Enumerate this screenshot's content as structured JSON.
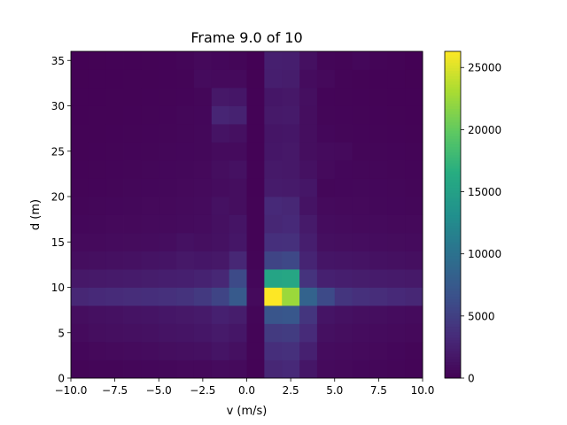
{
  "chart_data": {
    "type": "heatmap",
    "title": "Frame 9.0 of 10",
    "xlabel": "v (m/s)",
    "ylabel": "d (m)",
    "xlim": [
      -10,
      10
    ],
    "ylim": [
      0,
      36
    ],
    "x_bin_width": 1.0,
    "y_bin_width": 2.0,
    "x_ticks": [
      -10,
      -7.5,
      -5,
      -2.5,
      0,
      2.5,
      5,
      7.5,
      10
    ],
    "x_tick_labels": [
      "−10.0",
      "−7.5",
      "−5.0",
      "−2.5",
      "0.0",
      "2.5",
      "5.0",
      "7.5",
      "10.0"
    ],
    "y_ticks": [
      0,
      5,
      10,
      15,
      20,
      25,
      30,
      35
    ],
    "y_tick_labels": [
      "0",
      "5",
      "10",
      "15",
      "20",
      "25",
      "30",
      "35"
    ],
    "colorbar": {
      "colormap": "viridis",
      "range": [
        0,
        26300
      ],
      "ticks": [
        0,
        5000,
        10000,
        15000,
        20000,
        25000
      ],
      "tick_labels": [
        "0",
        "5000",
        "10000",
        "15000",
        "20000",
        "25000"
      ]
    },
    "z_rows_bottom_to_top": [
      [
        300,
        400,
        400,
        450,
        500,
        550,
        600,
        650,
        800,
        700,
        200,
        3000,
        3200,
        1700,
        700,
        600,
        500,
        450,
        400,
        300
      ],
      [
        500,
        600,
        700,
        800,
        900,
        1000,
        1100,
        1200,
        1500,
        1200,
        300,
        3600,
        3800,
        2500,
        900,
        800,
        700,
        600,
        500,
        400
      ],
      [
        800,
        1000,
        1100,
        1200,
        1300,
        1400,
        1500,
        1700,
        2000,
        1700,
        300,
        4600,
        4800,
        3300,
        1200,
        1000,
        900,
        800,
        700,
        600
      ],
      [
        1000,
        1200,
        1300,
        1400,
        1500,
        1700,
        1800,
        2000,
        2500,
        2200,
        400,
        7000,
        7200,
        4200,
        1500,
        1300,
        1100,
        1000,
        900,
        800
      ],
      [
        3000,
        3200,
        3300,
        3500,
        3600,
        3800,
        4000,
        4500,
        5500,
        7500,
        700,
        26300,
        22500,
        8500,
        6000,
        4200,
        3800,
        3500,
        3200,
        3000
      ],
      [
        1800,
        1900,
        2000,
        2100,
        2200,
        2300,
        2400,
        2600,
        3000,
        6000,
        500,
        15500,
        15800,
        4000,
        2500,
        2300,
        2200,
        2100,
        2000,
        1900
      ],
      [
        1000,
        1100,
        1200,
        1300,
        1400,
        1500,
        1800,
        1700,
        1800,
        3000,
        300,
        5500,
        5800,
        2800,
        1600,
        1500,
        1400,
        1300,
        1200,
        1100
      ],
      [
        700,
        750,
        800,
        850,
        900,
        950,
        1300,
        1100,
        1300,
        1700,
        200,
        3700,
        3800,
        2300,
        1100,
        1000,
        950,
        900,
        850,
        800
      ],
      [
        500,
        550,
        600,
        650,
        700,
        750,
        800,
        900,
        1200,
        1500,
        200,
        3000,
        3200,
        2000,
        900,
        800,
        750,
        700,
        650,
        600
      ],
      [
        400,
        450,
        500,
        550,
        600,
        650,
        700,
        800,
        1300,
        1000,
        200,
        3200,
        3000,
        1400,
        700,
        650,
        600,
        550,
        500,
        450
      ],
      [
        300,
        350,
        400,
        450,
        500,
        550,
        600,
        700,
        900,
        1000,
        150,
        2100,
        2000,
        1700,
        450,
        500,
        550,
        500,
        450,
        400
      ],
      [
        250,
        300,
        350,
        400,
        450,
        500,
        550,
        650,
        1000,
        1300,
        150,
        1900,
        1800,
        1300,
        750,
        500,
        450,
        450,
        400,
        350
      ],
      [
        200,
        250,
        300,
        350,
        400,
        450,
        500,
        550,
        800,
        800,
        150,
        1700,
        1800,
        1000,
        800,
        700,
        400,
        400,
        350,
        300
      ],
      [
        200,
        220,
        250,
        300,
        350,
        400,
        450,
        550,
        1400,
        1200,
        150,
        1600,
        1700,
        1000,
        500,
        400,
        350,
        300,
        250,
        200
      ],
      [
        150,
        200,
        220,
        250,
        300,
        350,
        450,
        500,
        2900,
        2600,
        150,
        1900,
        2000,
        1000,
        400,
        350,
        300,
        250,
        200,
        180
      ],
      [
        150,
        180,
        200,
        220,
        250,
        300,
        350,
        450,
        1800,
        1700,
        150,
        1700,
        1800,
        1100,
        350,
        300,
        250,
        200,
        180,
        150
      ],
      [
        120,
        150,
        180,
        200,
        220,
        260,
        300,
        800,
        700,
        700,
        120,
        2300,
        2200,
        900,
        600,
        300,
        220,
        180,
        150,
        120
      ],
      [
        100,
        120,
        150,
        180,
        200,
        240,
        400,
        600,
        500,
        400,
        100,
        2400,
        2300,
        1200,
        400,
        300,
        500,
        300,
        200,
        100
      ]
    ]
  }
}
